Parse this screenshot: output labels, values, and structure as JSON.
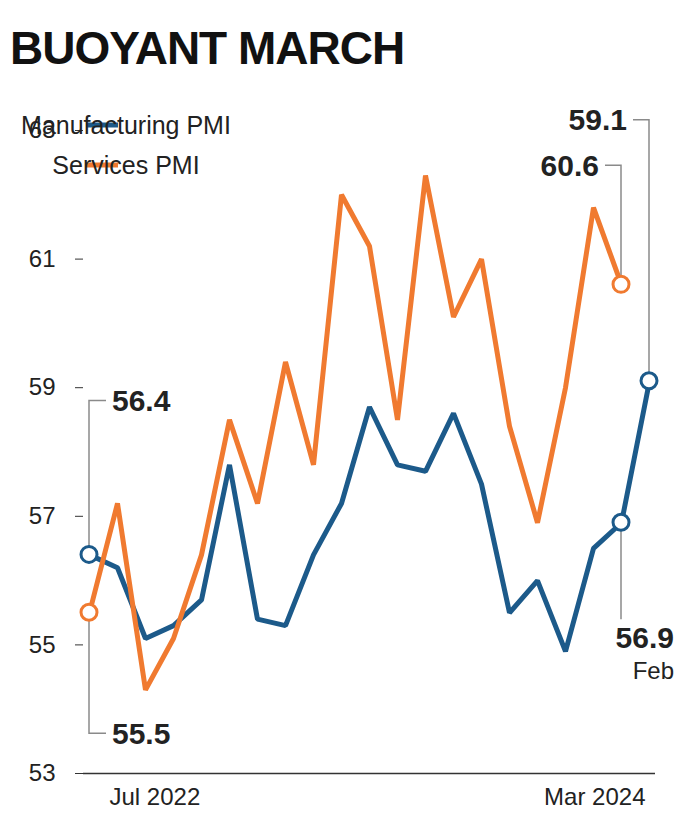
{
  "chart_data": {
    "type": "line",
    "title": "BUOYANT MARCH",
    "categories": [
      "Jul 2022",
      null,
      null,
      null,
      null,
      null,
      null,
      null,
      null,
      null,
      null,
      null,
      null,
      null,
      null,
      null,
      null,
      null,
      null,
      null,
      "Mar 2024"
    ],
    "series": [
      {
        "name": "Manufacturing PMI",
        "color": "#1c5a8a",
        "values": [
          56.4,
          56.2,
          55.1,
          55.3,
          55.7,
          57.8,
          55.4,
          55.3,
          56.4,
          57.2,
          58.7,
          57.8,
          57.7,
          58.6,
          57.5,
          55.5,
          56.0,
          54.9,
          56.5,
          56.9,
          59.1
        ]
      },
      {
        "name": "Services PMI",
        "color": "#f07a30",
        "values": [
          55.5,
          57.2,
          54.3,
          55.1,
          56.4,
          58.5,
          57.2,
          59.4,
          57.8,
          62.0,
          61.2,
          58.5,
          62.3,
          60.1,
          61.0,
          58.4,
          56.9,
          59.0,
          61.8,
          60.6,
          null
        ]
      }
    ],
    "ylim": [
      53,
      63
    ],
    "yticks": [
      53,
      55,
      57,
      59,
      61,
      63
    ],
    "legend": "top-left",
    "annotations": [
      {
        "text": "56.4",
        "series": "Manufacturing PMI",
        "index": 0
      },
      {
        "text": "55.5",
        "series": "Services PMI",
        "index": 0
      },
      {
        "text": "59.1",
        "series": "Manufacturing PMI",
        "index": 20
      },
      {
        "text": "60.6",
        "series": "Services PMI",
        "index": 19
      },
      {
        "text": "56.9",
        "note": "Feb",
        "series": "Manufacturing PMI",
        "index": 19
      }
    ]
  }
}
